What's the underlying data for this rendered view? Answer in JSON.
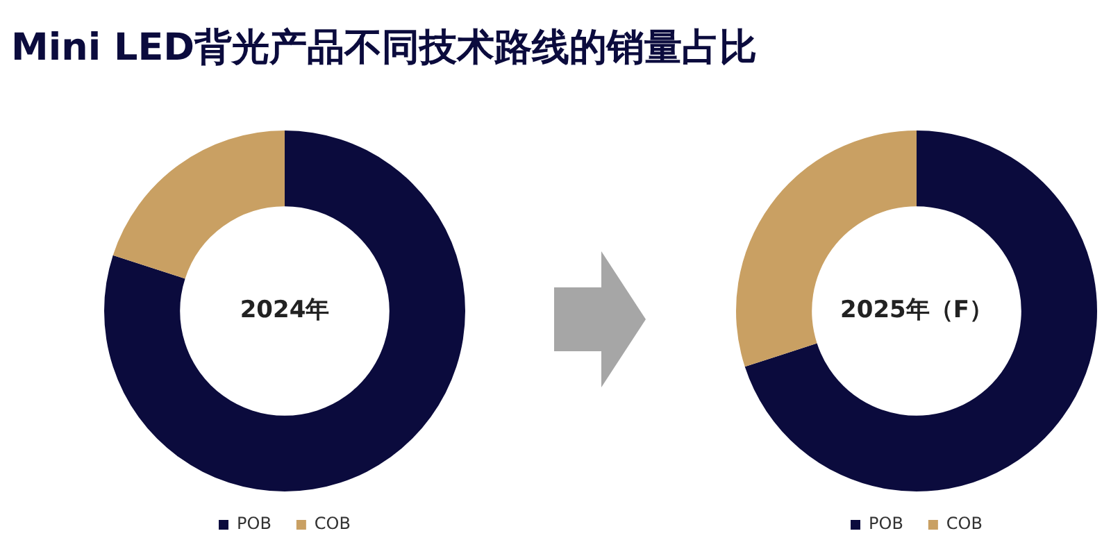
{
  "chart_data": [
    {
      "type": "other",
      "title": "Mini LED背光产品不同技术路线的销量占比"
    },
    {
      "type": "donut",
      "title": "2024年",
      "categories": [
        "POB",
        "COB"
      ],
      "values": [
        80,
        20
      ],
      "colors": [
        "#0b0b3d",
        "#c9a063"
      ],
      "legend": "bottom"
    },
    {
      "type": "donut",
      "title": "2025年（F）",
      "categories": [
        "POB",
        "COB"
      ],
      "values": [
        70,
        30
      ],
      "colors": [
        "#0b0b3d",
        "#c9a063"
      ],
      "legend": "bottom"
    }
  ]
}
